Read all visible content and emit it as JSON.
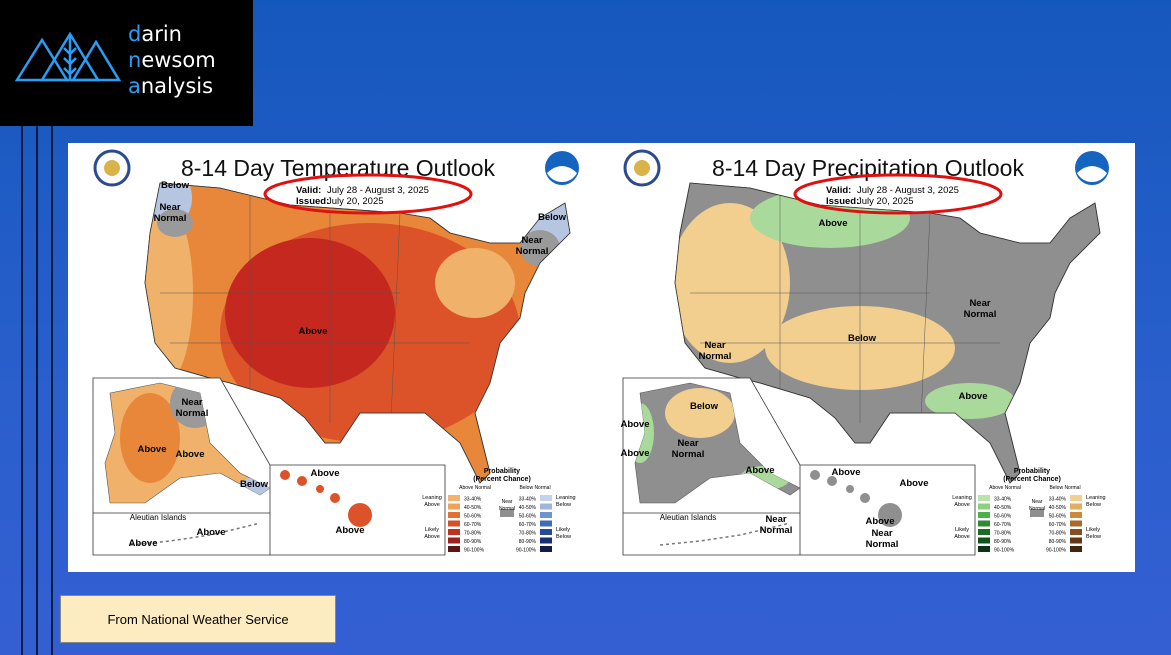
{
  "logo": {
    "lines": [
      "darin",
      "newsom",
      "analysis"
    ]
  },
  "maps": [
    {
      "title": "8-14 Day Temperature Outlook",
      "valid_label": "Valid:",
      "valid": "July 28 - August 3, 2025",
      "issued_label": "Issued:",
      "issued": "July 20, 2025",
      "regions": [
        {
          "lines": [
            "Below"
          ]
        },
        {
          "lines": [
            "Near",
            "Normal"
          ]
        },
        {
          "lines": [
            "Below"
          ]
        },
        {
          "lines": [
            "Near",
            "Normal"
          ]
        },
        {
          "lines": [
            "Above"
          ]
        },
        {
          "lines": [
            "Near",
            "Normal"
          ]
        },
        {
          "lines": [
            "Above"
          ]
        },
        {
          "lines": [
            "Above"
          ]
        },
        {
          "lines": [
            "Below"
          ]
        },
        {
          "lines": [
            "Aleutian Islands"
          ]
        },
        {
          "lines": [
            "Above"
          ]
        },
        {
          "lines": [
            "Above"
          ]
        },
        {
          "lines": [
            "Above"
          ]
        },
        {
          "lines": [
            "Above"
          ]
        }
      ],
      "legend": {
        "title_lines": [
          "Probability",
          "(Percent Chance)"
        ],
        "above_header": "Above Normal",
        "below_header": "Below Normal",
        "ranges": [
          "33-40%",
          "40-50%",
          "50-60%",
          "60-70%",
          "70-80%",
          "80-90%",
          "90-100%"
        ],
        "leaning_above": [
          "Leaning",
          "Above"
        ],
        "likely_above": [
          "Likely",
          "Above"
        ],
        "near": [
          "Near",
          "Normal"
        ],
        "leaning_below": [
          "Leaning",
          "Below"
        ],
        "likely_below": [
          "Likely",
          "Below"
        ]
      }
    },
    {
      "title": "8-14 Day Precipitation Outlook",
      "valid_label": "Valid:",
      "valid": "July 28 - August 3, 2025",
      "issued_label": "Issued:",
      "issued": "July 20, 2025",
      "regions": [
        {
          "lines": [
            "Above"
          ]
        },
        {
          "lines": [
            "Near",
            "Normal"
          ]
        },
        {
          "lines": [
            "Below"
          ]
        },
        {
          "lines": [
            "Near",
            "Normal"
          ]
        },
        {
          "lines": [
            "Above"
          ]
        },
        {
          "lines": [
            "Below"
          ]
        },
        {
          "lines": [
            "Near",
            "Normal"
          ]
        },
        {
          "lines": [
            "Above"
          ]
        },
        {
          "lines": [
            "Above"
          ]
        },
        {
          "lines": [
            "Above"
          ]
        },
        {
          "lines": [
            "Aleutian Islands"
          ]
        },
        {
          "lines": [
            "Near",
            "Normal"
          ]
        },
        {
          "lines": [
            "Above"
          ]
        },
        {
          "lines": [
            "Above"
          ]
        },
        {
          "lines": [
            "Above"
          ]
        },
        {
          "lines": [
            "Near",
            "Normal"
          ]
        }
      ],
      "legend": {
        "title_lines": [
          "Probability",
          "(Percent Chance)"
        ],
        "above_header": "Above Normal",
        "below_header": "Below Normal",
        "ranges": [
          "33-40%",
          "40-50%",
          "50-60%",
          "60-70%",
          "70-80%",
          "80-90%",
          "90-100%"
        ],
        "leaning_above": [
          "Leaning",
          "Above"
        ],
        "likely_above": [
          "Likely",
          "Above"
        ],
        "near": [
          "Near",
          "Normal"
        ],
        "leaning_below": [
          "Leaning",
          "Below"
        ],
        "likely_below": [
          "Likely",
          "Below"
        ]
      }
    }
  ],
  "caption": "From National Weather Service"
}
